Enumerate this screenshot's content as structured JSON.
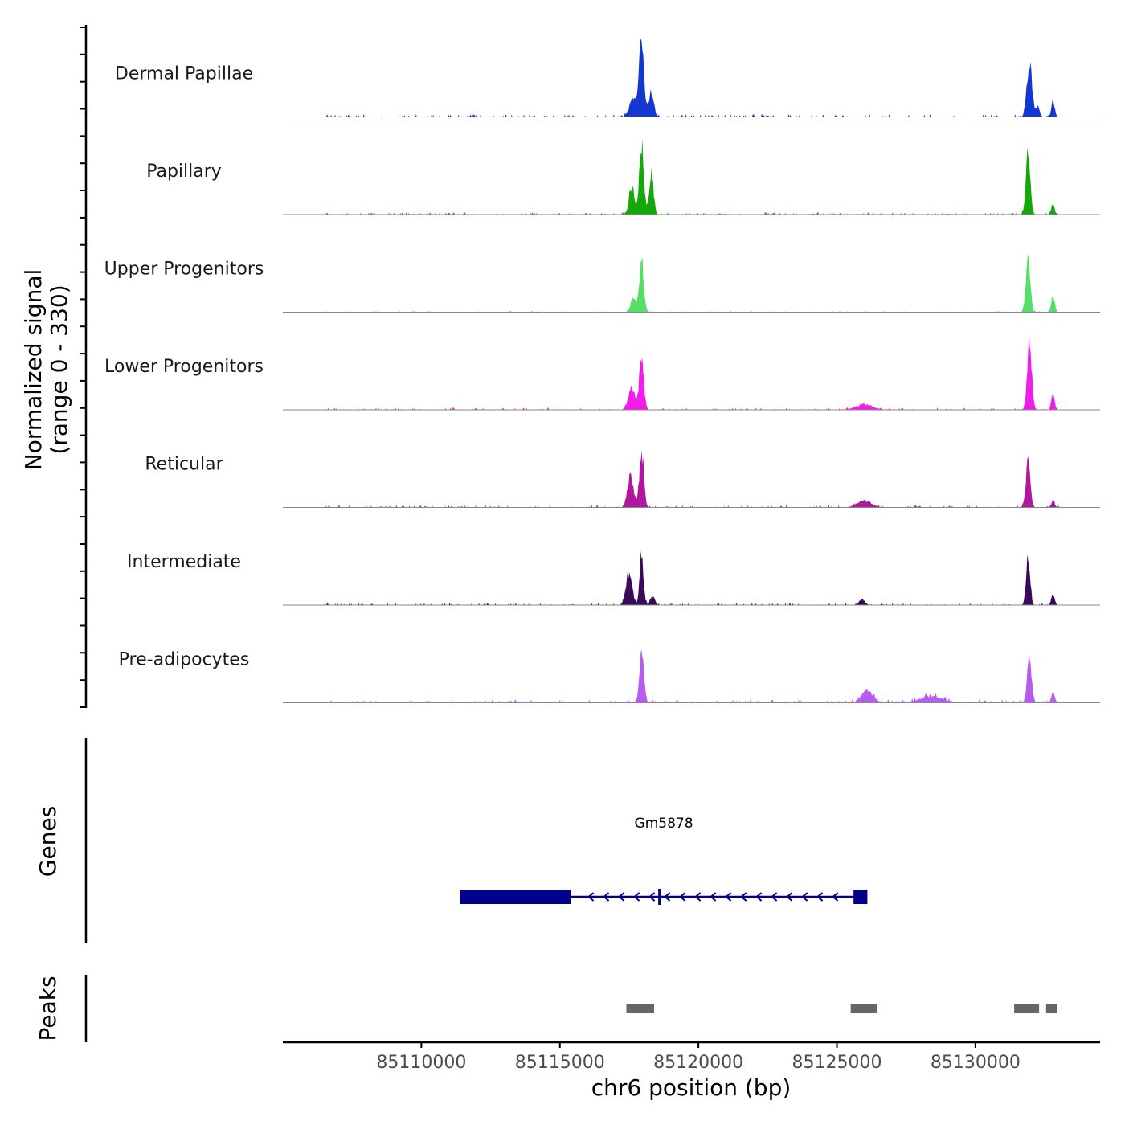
{
  "chart_data": {
    "type": "area",
    "title": "",
    "ylabel_line1": "Normalized signal",
    "ylabel_line2": "(range 0 - 330)",
    "ylim": [
      0,
      330
    ],
    "xlabel": "chr6 position (bp)",
    "xlim": [
      85105000,
      85134500
    ],
    "xticks": [
      85110000,
      85115000,
      85120000,
      85125000,
      85130000
    ],
    "xtick_labels": [
      "85110000",
      "85115000",
      "85120000",
      "85125000",
      "85130000"
    ],
    "genes_label": "Genes",
    "peaks_label": "Peaks",
    "tracks": [
      {
        "name": "Dermal Papillae",
        "color": "#1437d0",
        "peaks": [
          [
            85117650,
            80,
            140
          ],
          [
            85117950,
            330,
            90
          ],
          [
            85118300,
            110,
            90
          ],
          [
            85131950,
            250,
            90
          ],
          [
            85132250,
            45,
            70
          ],
          [
            85132800,
            70,
            60
          ]
        ],
        "noise": 12,
        "seed": 3
      },
      {
        "name": "Papillary",
        "color": "#14a80a",
        "peaks": [
          [
            85117600,
            120,
            100
          ],
          [
            85117950,
            330,
            80
          ],
          [
            85118300,
            180,
            80
          ],
          [
            85131900,
            260,
            80
          ],
          [
            85132800,
            45,
            60
          ]
        ],
        "noise": 10,
        "seed": 7
      },
      {
        "name": "Upper Progenitors",
        "color": "#55e065",
        "peaks": [
          [
            85117650,
            60,
            100
          ],
          [
            85117950,
            230,
            80
          ],
          [
            85131900,
            230,
            80
          ],
          [
            85132800,
            80,
            60
          ]
        ],
        "noise": 6,
        "seed": 11
      },
      {
        "name": "Lower Progenitors",
        "color": "#f01ee8",
        "peaks": [
          [
            85117600,
            100,
            120
          ],
          [
            85117950,
            240,
            80
          ],
          [
            85126000,
            25,
            300
          ],
          [
            85131950,
            300,
            80
          ],
          [
            85132800,
            70,
            60
          ]
        ],
        "noise": 9,
        "seed": 17
      },
      {
        "name": "Reticular",
        "color": "#b0179f",
        "peaks": [
          [
            85117550,
            140,
            110
          ],
          [
            85117950,
            250,
            80
          ],
          [
            85126000,
            30,
            250
          ],
          [
            85131900,
            220,
            80
          ],
          [
            85132800,
            30,
            60
          ]
        ],
        "noise": 10,
        "seed": 23
      },
      {
        "name": "Intermediate",
        "color": "#3a0a5a",
        "peaks": [
          [
            85117500,
            150,
            110
          ],
          [
            85117950,
            230,
            70
          ],
          [
            85118350,
            40,
            80
          ],
          [
            85125900,
            25,
            100
          ],
          [
            85131900,
            230,
            70
          ],
          [
            85132800,
            50,
            60
          ]
        ],
        "noise": 10,
        "seed": 29
      },
      {
        "name": "Pre-adipocytes",
        "color": "#b85cf0",
        "peaks": [
          [
            85117950,
            220,
            80
          ],
          [
            85126100,
            55,
            200
          ],
          [
            85128400,
            30,
            400
          ],
          [
            85131950,
            200,
            80
          ],
          [
            85132800,
            50,
            60
          ]
        ],
        "noise": 14,
        "seed": 41
      }
    ],
    "gene": {
      "name": "Gm5878",
      "start": 85111400,
      "end": 85126100,
      "strand": "-",
      "color": "#00008b",
      "exons": [
        [
          85111400,
          85115400
        ],
        [
          85118550,
          85118650
        ],
        [
          85125600,
          85126100
        ]
      ]
    },
    "peak_regions": {
      "color": "#666666",
      "regions": [
        [
          85117400,
          85118400
        ],
        [
          85125500,
          85126450
        ],
        [
          85131400,
          85132300
        ],
        [
          85132550,
          85132950
        ]
      ]
    }
  }
}
